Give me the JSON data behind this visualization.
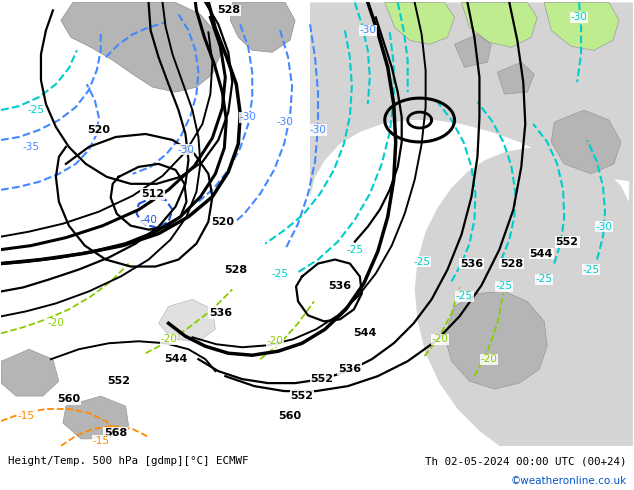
{
  "title_left": "Height/Temp. 500 hPa [gdmp][°C] ECMWF",
  "title_right": "Th 02-05-2024 00:00 UTC (00+24)",
  "watermark": "©weatheronline.co.uk",
  "bg_ocean": "#d8d8d8",
  "bg_land_green": "#c8f0a0",
  "bg_land_gray": "#b0b0b0",
  "black": "#000000",
  "blue_dash": "#4488ff",
  "teal_dash": "#00cccc",
  "orange_dash": "#ff8800",
  "green_dash": "#88cc00",
  "watermark_color": "#0055cc"
}
